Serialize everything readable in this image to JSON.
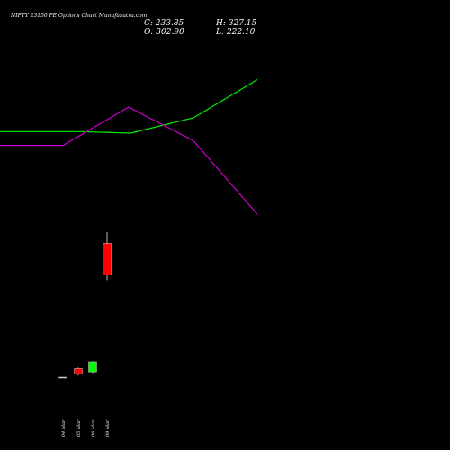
{
  "header": {
    "title": "NIFTY 23150  PE Options  Chart Munafasutra.com",
    "close": "C: 233.85",
    "high": "H: 327.15",
    "open": "O: 302.90",
    "low": "L: 222.10"
  },
  "chart_data": {
    "type": "candlestick",
    "x_labels": [
      "04 Mar",
      "05 Mar",
      "06 Mar",
      "09 Mar"
    ],
    "candles": [
      {
        "date": "04 Mar",
        "open": 10.0,
        "high": 10.3,
        "low": 9.7,
        "close": 10.0
      },
      {
        "date": "05 Mar",
        "open": 29.0,
        "high": 31.0,
        "low": 13.5,
        "close": 16.5
      },
      {
        "date": "06 Mar",
        "open": 21.5,
        "high": 45.0,
        "low": 19.0,
        "close": 43.5
      },
      {
        "date": "09 Mar",
        "open": 302.9,
        "high": 327.15,
        "low": 222.1,
        "close": 233.85
      }
    ],
    "overlay_lines": [
      {
        "color": "#00ee00",
        "points": [
          [
            0,
            0.61
          ],
          [
            90,
            0.61
          ],
          [
            145,
            0.6
          ],
          [
            215,
            0.7
          ],
          [
            286,
            0.95
          ]
        ]
      },
      {
        "color": "#cc00cc",
        "points": [
          [
            0,
            0.52
          ],
          [
            70,
            0.52
          ],
          [
            143,
            0.77
          ],
          [
            215,
            0.55
          ],
          [
            286,
            0.07
          ]
        ]
      }
    ],
    "up_color": "#00ff00",
    "down_color": "#ff0000"
  }
}
